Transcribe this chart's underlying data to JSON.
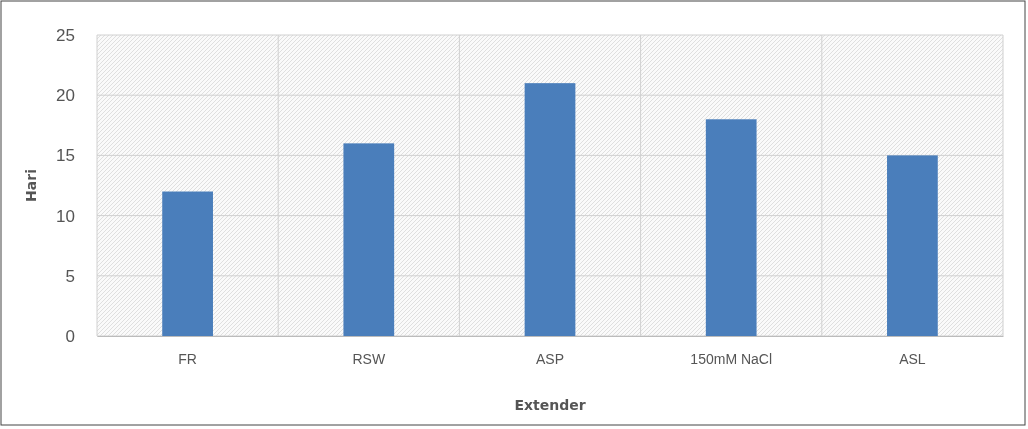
{
  "chart_data": {
    "type": "bar",
    "xlabel": "Extender",
    "ylabel": "Hari",
    "categories": [
      "FR",
      "RSW",
      "ASP",
      "150mM NaCl",
      "ASL"
    ],
    "values": [
      12,
      16,
      21,
      18,
      15
    ],
    "color": "#4a7ebb",
    "ylim": [
      0,
      25
    ],
    "yticks": [
      0,
      5,
      10,
      15,
      20,
      25
    ],
    "grid": true
  }
}
